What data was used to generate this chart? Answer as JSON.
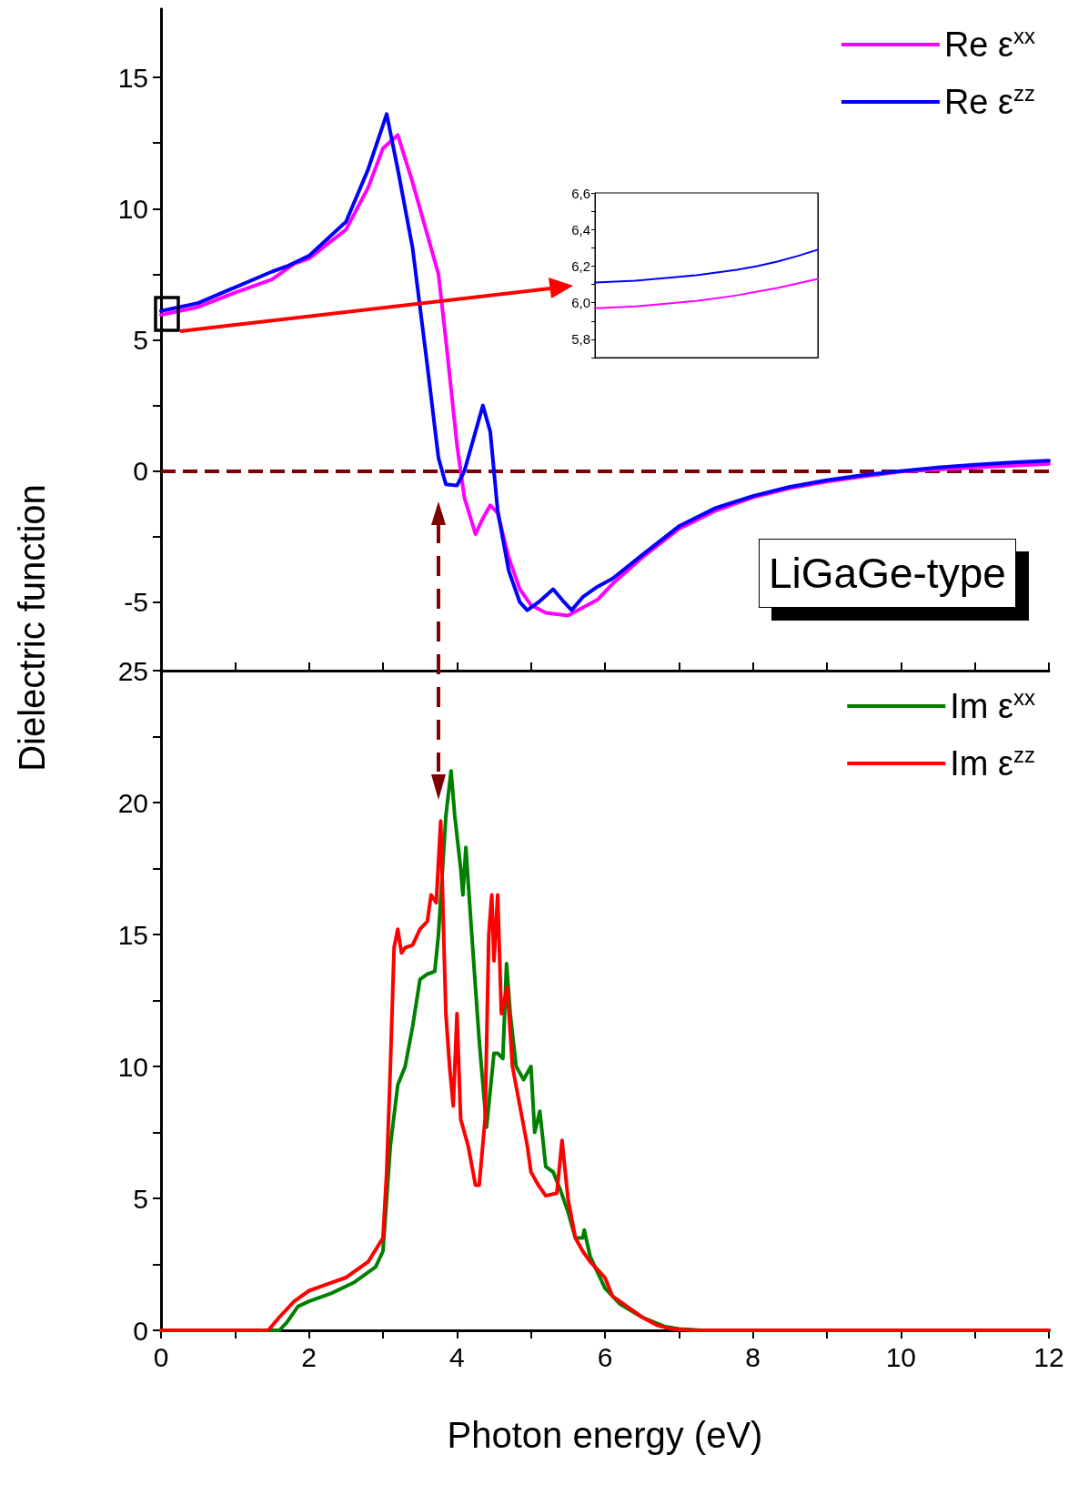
{
  "chart_data": [
    {
      "type": "line",
      "ylabel": "Dielectric function",
      "xlim": [
        0,
        12
      ],
      "xticks": [
        0,
        {
          "value": 1,
          "label": null
        },
        2,
        {
          "value": 3,
          "label": null
        },
        4,
        {
          "value": 5,
          "label": null
        },
        6,
        {
          "value": 7,
          "label": null
        },
        8,
        {
          "value": 9,
          "label": null
        },
        10,
        {
          "value": 11,
          "label": null
        },
        12
      ],
      "ylim": [
        -7.6,
        17.6
      ],
      "yticks": [
        -5,
        {
          "value": -2.5,
          "label": null
        },
        0,
        {
          "value": 2.5,
          "label": null
        },
        5,
        {
          "value": 7.5,
          "label": null
        },
        10,
        {
          "value": 12.5,
          "label": null
        },
        15
      ],
      "tick_labels": "y",
      "legend": "top right",
      "marker": "none",
      "annotations": [
        "LiGaGe-type"
      ],
      "ref_lines": [
        {
          "axis": "y",
          "value": 0,
          "color": "#7f0000",
          "line_style": "dashed"
        }
      ],
      "series": [
        {
          "name": "Re ε$^{xx}$",
          "color": "#ff00ff",
          "x": [
            0,
            0.5,
            1,
            1.5,
            1.8,
            2,
            2.5,
            2.8,
            3,
            3.2,
            3.4,
            3.6,
            3.75,
            3.85,
            4,
            4.1,
            4.25,
            4.35,
            4.45,
            4.55,
            4.7,
            4.85,
            5,
            5.2,
            5.5,
            5.7,
            5.9,
            6.1,
            6.5,
            7,
            7.5,
            8,
            8.5,
            9,
            9.5,
            10,
            10.5,
            11,
            11.5,
            12
          ],
          "values": [
            5.95,
            6.25,
            6.8,
            7.3,
            7.9,
            8.1,
            9.2,
            10.8,
            12.3,
            12.8,
            11,
            9,
            7.5,
            5,
            1,
            -1,
            -2.4,
            -1.8,
            -1.3,
            -1.6,
            -3.3,
            -4.5,
            -5.1,
            -5.4,
            -5.5,
            -5.2,
            -4.9,
            -4.3,
            -3.3,
            -2.2,
            -1.5,
            -1,
            -0.65,
            -0.4,
            -0.2,
            -0.02,
            0.06,
            0.14,
            0.21,
            0.28
          ]
        },
        {
          "name": "Re ε$^{zz}$",
          "color": "#0000ff",
          "x": [
            0,
            0.5,
            1,
            1.5,
            1.7,
            2,
            2.5,
            2.8,
            3.05,
            3.2,
            3.4,
            3.6,
            3.75,
            3.85,
            4,
            4.1,
            4.25,
            4.35,
            4.45,
            4.55,
            4.7,
            4.85,
            4.95,
            5.1,
            5.3,
            5.45,
            5.55,
            5.7,
            5.9,
            6.1,
            6.5,
            7,
            7.5,
            8,
            8.5,
            9,
            9.5,
            10,
            10.5,
            11,
            11.5,
            12
          ],
          "values": [
            6.1,
            6.4,
            7,
            7.6,
            7.8,
            8.2,
            9.5,
            11.5,
            13.6,
            11.5,
            8.5,
            4,
            0.5,
            -0.5,
            -0.55,
            0,
            1.5,
            2.5,
            1.5,
            -1.5,
            -3.8,
            -5,
            -5.3,
            -5,
            -4.5,
            -5,
            -5.3,
            -4.8,
            -4.4,
            -4.1,
            -3.2,
            -2.1,
            -1.4,
            -0.95,
            -0.6,
            -0.35,
            -0.15,
            0,
            0.14,
            0.24,
            0.33,
            0.4
          ]
        }
      ]
    },
    {
      "type": "line",
      "xlabel": "Photon energy (eV)",
      "xlim": [
        0,
        12
      ],
      "xticks": [
        0,
        {
          "value": 1,
          "label": null
        },
        2,
        {
          "value": 3,
          "label": null
        },
        4,
        {
          "value": 5,
          "label": null
        },
        6,
        {
          "value": 7,
          "label": null
        },
        8,
        {
          "value": 9,
          "label": null
        },
        10,
        {
          "value": 11,
          "label": null
        },
        12
      ],
      "ylim": [
        0,
        25
      ],
      "yticks": [
        0,
        {
          "value": 2.5,
          "label": null
        },
        5,
        {
          "value": 7.5,
          "label": null
        },
        10,
        {
          "value": 12.5,
          "label": null
        },
        15,
        {
          "value": 17.5,
          "label": null
        },
        20,
        {
          "value": 22.5,
          "label": null
        },
        25
      ],
      "legend": "top right",
      "marker": "none",
      "series": [
        {
          "name": "Im ε$^{xx}$",
          "color": "#008000",
          "x": [
            0,
            1.6,
            1.7,
            1.85,
            2,
            2.3,
            2.6,
            2.9,
            3,
            3.1,
            3.2,
            3.3,
            3.4,
            3.5,
            3.6,
            3.7,
            3.75,
            3.85,
            3.92,
            3.97,
            4.05,
            4.08,
            4.12,
            4.2,
            4.3,
            4.4,
            4.5,
            4.55,
            4.62,
            4.67,
            4.72,
            4.8,
            4.9,
            5,
            5.05,
            5.12,
            5.2,
            5.3,
            5.4,
            5.5,
            5.6,
            5.7,
            5.72,
            5.8,
            6,
            6.2,
            6.5,
            6.8,
            7,
            7.3,
            12
          ],
          "values": [
            0,
            0,
            0.3,
            0.9,
            1.1,
            1.4,
            1.8,
            2.4,
            3,
            7,
            9.3,
            10,
            11.5,
            13.3,
            13.5,
            13.6,
            15,
            19.5,
            21.2,
            19.5,
            17.5,
            16.5,
            18.3,
            15,
            11,
            7.7,
            10.5,
            10.5,
            10.3,
            13.9,
            12,
            10,
            9.5,
            10,
            7.5,
            8.3,
            6.2,
            6,
            5.3,
            4.5,
            3.5,
            3.5,
            3.8,
            2.8,
            1.6,
            1,
            0.5,
            0.15,
            0.05,
            0,
            0
          ]
        },
        {
          "name": "Im ε$^{zz}$",
          "color": "#ff0000",
          "x": [
            0,
            1.45,
            1.6,
            1.8,
            2,
            2.2,
            2.5,
            2.8,
            3,
            3.05,
            3.1,
            3.15,
            3.2,
            3.25,
            3.3,
            3.4,
            3.5,
            3.6,
            3.65,
            3.72,
            3.78,
            3.82,
            3.85,
            3.9,
            3.95,
            4,
            4.05,
            4.15,
            4.25,
            4.3,
            4.38,
            4.43,
            4.47,
            4.5,
            4.55,
            4.6,
            4.68,
            4.75,
            4.85,
            4.95,
            5,
            5.1,
            5.2,
            5.35,
            5.42,
            5.5,
            5.6,
            5.7,
            5.8,
            5.9,
            6,
            6.1,
            6.3,
            6.5,
            6.7,
            6.9,
            7.2,
            12
          ],
          "values": [
            0,
            0,
            0.5,
            1.1,
            1.5,
            1.7,
            2,
            2.6,
            3.5,
            6,
            10,
            14.5,
            15.2,
            14.3,
            14.5,
            14.6,
            15.2,
            15.5,
            16.5,
            16.2,
            19.3,
            15,
            12,
            10,
            8.5,
            12,
            8,
            7,
            5.5,
            5.5,
            8,
            15,
            16.5,
            14,
            16.5,
            12,
            13,
            10,
            8.5,
            7,
            6,
            5.5,
            5.1,
            5.2,
            7.2,
            5,
            3.5,
            3,
            2.6,
            2.3,
            2,
            1.3,
            0.9,
            0.5,
            0.2,
            0.05,
            0,
            0
          ]
        }
      ]
    },
    {
      "type": "line",
      "categories": [
        null,
        null,
        null,
        null,
        null,
        null,
        null,
        null,
        null,
        null,
        null,
        null
      ],
      "ylim": [
        5.7,
        6.6
      ],
      "yticks": [
        {
          "value": 5.7,
          "label": null
        },
        {
          "value": 5.8,
          "label": "5,8"
        },
        {
          "value": 5.9,
          "label": null
        },
        {
          "value": 6.0,
          "label": "6,0"
        },
        {
          "value": 6.1,
          "label": null
        },
        {
          "value": 6.2,
          "label": "6,2"
        },
        {
          "value": 6.3,
          "label": null
        },
        {
          "value": 6.4,
          "label": "6,4"
        },
        {
          "value": 6.5,
          "label": null
        },
        {
          "value": 6.6,
          "label": "6,6"
        }
      ],
      "tick_labels": "y",
      "marker": "none",
      "series": [
        {
          "color": "#0000ff",
          "values": [
            6.11,
            6.115,
            6.12,
            6.13,
            6.14,
            6.15,
            6.165,
            6.18,
            6.2,
            6.225,
            6.255,
            6.29
          ]
        },
        {
          "color": "#ff00ff",
          "values": [
            5.97,
            5.975,
            5.98,
            5.99,
            6.0,
            6.01,
            6.025,
            6.04,
            6.06,
            6.08,
            6.105,
            6.13
          ]
        }
      ]
    }
  ]
}
